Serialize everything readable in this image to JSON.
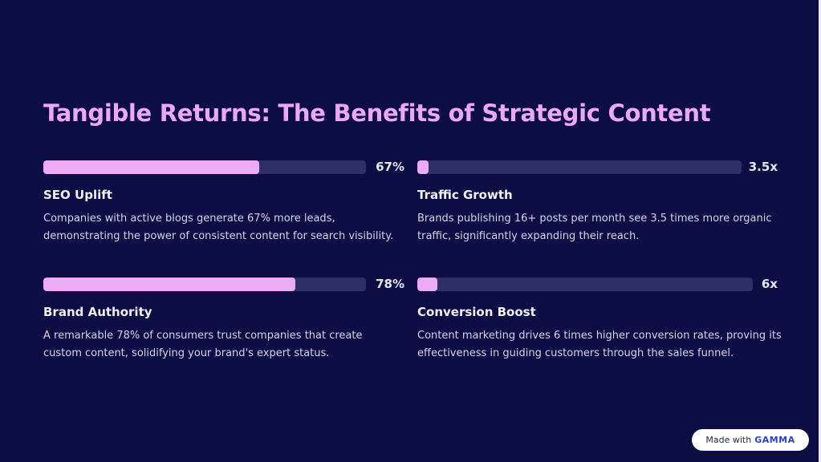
{
  "title": "Tangible Returns: The Benefits of Strategic Content",
  "stats": [
    {
      "value": "67%",
      "progress": 0.67,
      "heading": "SEO Uplift",
      "description": "Companies with active blogs generate 67% more leads, demonstrating the power of consistent content for search visibility."
    },
    {
      "value": "3.5x",
      "progress": 0.035,
      "heading": "Traffic Growth",
      "description": "Brands publishing 16+ posts per month see 3.5 times more organic traffic, significantly expanding their reach."
    },
    {
      "value": "78%",
      "progress": 0.78,
      "heading": "Brand Authority",
      "description": "A remarkable 78% of consumers trust companies that create custom content, solidifying your brand's expert status."
    },
    {
      "value": "6x",
      "progress": 0.06,
      "heading": "Conversion Boost",
      "description": "Content marketing drives 6 times higher conversion rates, proving its effectiveness in guiding customers through the sales funnel."
    }
  ],
  "badge": {
    "prefix": "Made with",
    "brand": "GAMMA"
  },
  "colors": {
    "background": "#0c0d45",
    "accent": "#efaaf6",
    "track": "#2e2f66"
  }
}
